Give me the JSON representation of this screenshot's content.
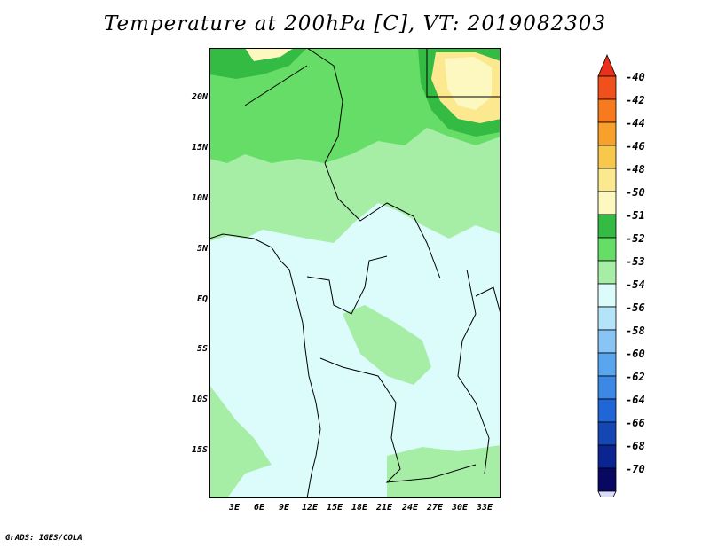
{
  "title": "Temperature at 200hPa [C], VT: 2019082303",
  "lat_labels": [
    "20N",
    "15N",
    "10N",
    "5N",
    "EQ",
    "5S",
    "10S",
    "15S"
  ],
  "lon_labels": [
    "3E",
    "6E",
    "9E",
    "12E",
    "15E",
    "18E",
    "21E",
    "24E",
    "27E",
    "30E",
    "33E"
  ],
  "colorbar": {
    "labels": [
      "-40",
      "-42",
      "-44",
      "-46",
      "-48",
      "-50",
      "-51",
      "-52",
      "-53",
      "-54",
      "-56",
      "-58",
      "-60",
      "-62",
      "-64",
      "-66",
      "-68",
      "-70"
    ],
    "colors": [
      "#e8301a",
      "#f0501c",
      "#f77a1c",
      "#f7a02a",
      "#f7c84c",
      "#fbe88f",
      "#fdf8c0",
      "#33bb44",
      "#66dd66",
      "#a6eea6",
      "#dcfcfc",
      "#b4e4fa",
      "#88c4f4",
      "#5aa6ee",
      "#3c88e4",
      "#2066d6",
      "#1446b4",
      "#0a2490",
      "#080860",
      "#dcdcf8"
    ]
  },
  "credit": "GrADS: IGES/COLA"
}
